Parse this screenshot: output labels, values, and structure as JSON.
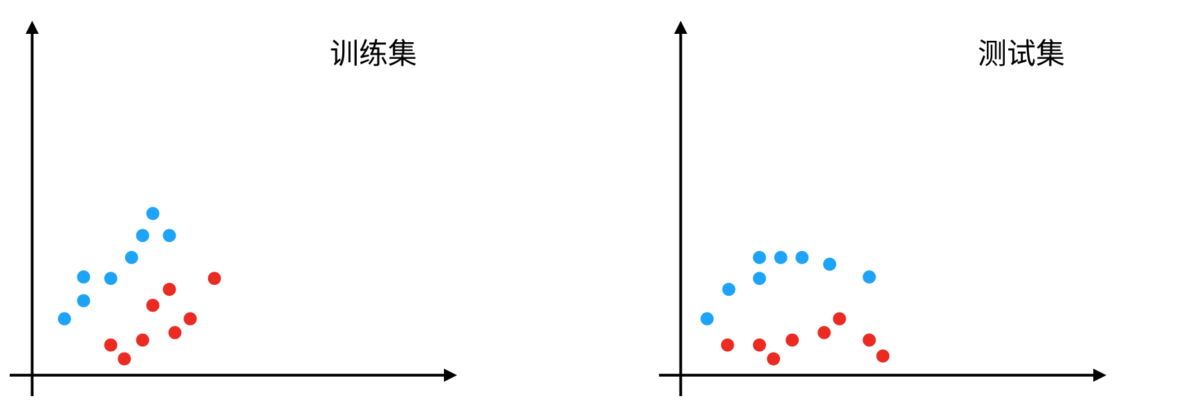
{
  "colors": {
    "class_a": "#1DA3F8",
    "class_b": "#EB2A22",
    "axis": "#000000"
  },
  "chart_data": [
    {
      "type": "scatter",
      "title": "训练集",
      "xlabel": "",
      "ylabel": "",
      "xlim": [
        0,
        100
      ],
      "ylim": [
        0,
        100
      ],
      "grid": false,
      "ticks": false,
      "series": [
        {
          "color": "#1DA3F8",
          "points": [
            [
              28.4,
              45.6
            ],
            [
              26.0,
              39.4
            ],
            [
              32.3,
              39.4
            ],
            [
              23.4,
              33.2
            ],
            [
              12.1,
              27.7
            ],
            [
              18.5,
              27.3
            ],
            [
              12.1,
              21.0
            ],
            [
              7.6,
              15.9
            ]
          ]
        },
        {
          "color": "#EB2A22",
          "points": [
            [
              42.9,
              27.3
            ],
            [
              32.3,
              24.2
            ],
            [
              28.4,
              19.7
            ],
            [
              37.2,
              15.9
            ],
            [
              33.6,
              12.0
            ],
            [
              26.0,
              9.9
            ],
            [
              18.5,
              8.5
            ],
            [
              21.7,
              4.6
            ]
          ]
        }
      ]
    },
    {
      "type": "scatter",
      "title": "测试集",
      "xlabel": "",
      "ylabel": "",
      "xlim": [
        0,
        100
      ],
      "ylim": [
        0,
        100
      ],
      "grid": false,
      "ticks": false,
      "series": [
        {
          "color": "#1DA3F8",
          "points": [
            [
              18.5,
              33.2
            ],
            [
              23.5,
              33.2
            ],
            [
              28.5,
              33.2
            ],
            [
              35.0,
              31.3
            ],
            [
              18.5,
              27.3
            ],
            [
              44.3,
              27.7
            ],
            [
              11.3,
              24.2
            ],
            [
              6.2,
              15.9
            ]
          ]
        },
        {
          "color": "#EB2A22",
          "points": [
            [
              11.0,
              8.5
            ],
            [
              18.5,
              8.5
            ],
            [
              21.8,
              4.6
            ],
            [
              26.2,
              9.9
            ],
            [
              33.7,
              12.0
            ],
            [
              37.3,
              15.9
            ],
            [
              44.3,
              9.9
            ],
            [
              47.5,
              5.4
            ]
          ]
        }
      ]
    }
  ]
}
